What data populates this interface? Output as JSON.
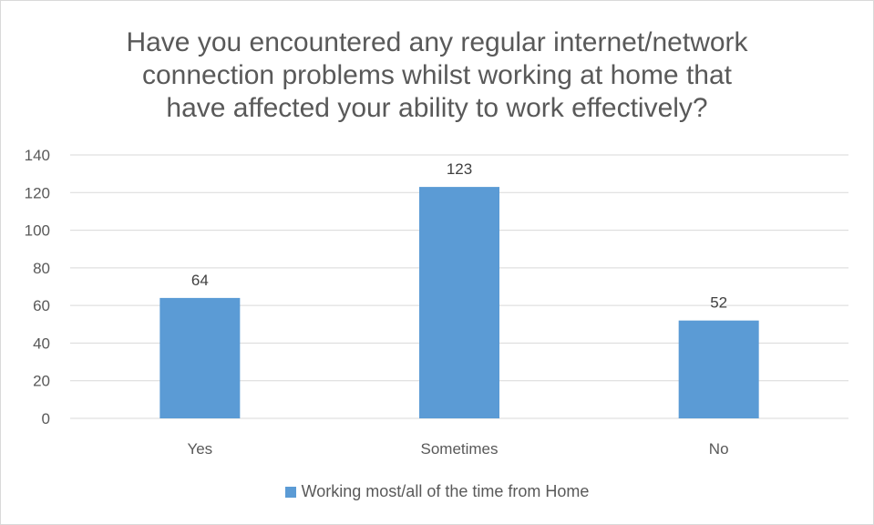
{
  "chart_data": {
    "type": "bar",
    "title_lines": [
      "Have you encountered any regular internet/network",
      "connection problems whilst working at home that",
      "have affected your ability to work effectively?"
    ],
    "categories": [
      "Yes",
      "Sometimes",
      "No"
    ],
    "series": [
      {
        "name": "Working most/all of the time from Home",
        "values": [
          64,
          123,
          52
        ],
        "color": "#5b9bd5"
      }
    ],
    "ylim": [
      0,
      140
    ],
    "yticks": [
      0,
      20,
      40,
      60,
      80,
      100,
      120,
      140
    ],
    "grid": true,
    "data_labels": true,
    "legend_position": "bottom"
  }
}
